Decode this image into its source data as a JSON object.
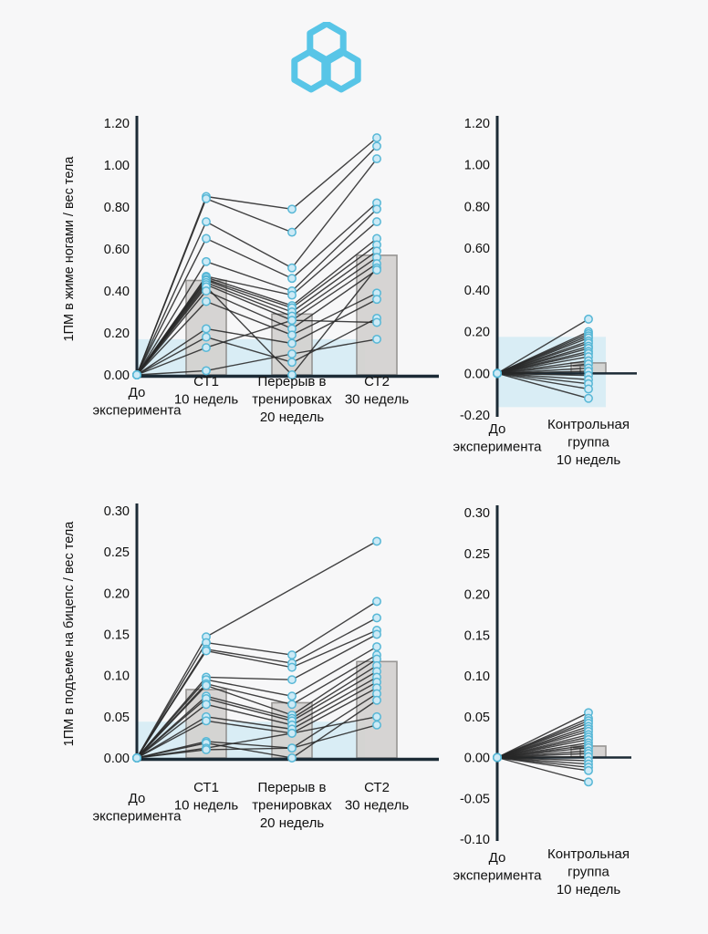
{
  "page": {
    "background": "#f7f7f8"
  },
  "logo": {
    "icon": "three-interlocked-hexagons",
    "color": "#58c5e7"
  },
  "style": {
    "line_color": "#282828",
    "marker_fill": "#cdeaf6",
    "marker_stroke": "#57b7d6",
    "bar_fill": "#d4d2d0",
    "bar_stroke": "#8f8d8b",
    "band_color": "#d9edf5",
    "axis_color": "#1c2b36",
    "error_color": "#6a6a6a",
    "text_color": "#101010"
  },
  "chart_data": [
    {
      "id": "legpress-training",
      "type": "line",
      "ylabel": "1ПМ в жиме ногами / вес тела",
      "ylim": [
        0,
        1.2
      ],
      "ytick_values": [
        1.2,
        1.0,
        0.8,
        0.6,
        0.4,
        0.2,
        0.0
      ],
      "ytick_labels": [
        "1.20",
        "1.00",
        "0.80",
        "0.60",
        "0.40",
        "0.20",
        "0.00"
      ],
      "categories": [
        [
          "До",
          "эксперимента"
        ],
        [
          "СТ1",
          "10 недель"
        ],
        [
          "Перерыв в",
          "тренировках",
          "20 недель"
        ],
        [
          "СТ2",
          "30 недель"
        ]
      ],
      "band": [
        0,
        0.17
      ],
      "bars": [
        null,
        0.45,
        0.29,
        0.57
      ],
      "bar_error": null,
      "zero_line": false,
      "series": [
        [
          0,
          0.85,
          0.79,
          1.13
        ],
        [
          0,
          0.84,
          0.68,
          1.09
        ],
        [
          0,
          0.73,
          0.51,
          1.03
        ],
        [
          0,
          0.65,
          0.46,
          0.82
        ],
        [
          0,
          0.54,
          0.4,
          0.79
        ],
        [
          0,
          0.47,
          0.38,
          0.73
        ],
        [
          0,
          0.465,
          0.33,
          0.65
        ],
        [
          0,
          0.455,
          0.32,
          0.62
        ],
        [
          0,
          0.45,
          0.3,
          0.59
        ],
        [
          0,
          0.44,
          0.28,
          0.56
        ],
        [
          0,
          0.43,
          0.26,
          0.53
        ],
        [
          0,
          0.42,
          0.0,
          0.51
        ],
        [
          0,
          0.4,
          0.22,
          0.5
        ],
        [
          0,
          0.35,
          0.19,
          0.39
        ],
        [
          0,
          0.22,
          0.15,
          0.36
        ],
        [
          0,
          0.18,
          0.06,
          0.27
        ],
        [
          0,
          0.13,
          0.26,
          0.25
        ],
        [
          0,
          0.02,
          0.1,
          0.17
        ]
      ]
    },
    {
      "id": "legpress-control",
      "type": "line",
      "ylabel": "",
      "ylim": [
        -0.2,
        1.2
      ],
      "ytick_values": [
        1.2,
        1.0,
        0.8,
        0.6,
        0.4,
        0.2,
        0.0,
        -0.2
      ],
      "ytick_labels": [
        "1.20",
        "1.00",
        "0.80",
        "0.60",
        "0.40",
        "0.20",
        "0.00",
        "-0.20"
      ],
      "categories": [
        [
          "До",
          "эксперимента"
        ],
        [
          "Контрольная",
          "группа",
          "10 недель"
        ]
      ],
      "band": [
        -0.162,
        0.175
      ],
      "bars": [
        null,
        0.05
      ],
      "bar_error": 0.036,
      "zero_line": true,
      "series": [
        [
          0,
          0.26
        ],
        [
          0,
          0.2
        ],
        [
          0,
          0.19
        ],
        [
          0,
          0.18
        ],
        [
          0,
          0.17
        ],
        [
          0,
          0.155
        ],
        [
          0,
          0.145
        ],
        [
          0,
          0.13
        ],
        [
          0,
          0.12
        ],
        [
          0,
          0.105
        ],
        [
          0,
          0.095
        ],
        [
          0,
          0.08
        ],
        [
          0,
          0.06
        ],
        [
          0,
          0.045
        ],
        [
          0,
          0.025
        ],
        [
          0,
          0.01
        ],
        [
          0,
          -0.01
        ],
        [
          0,
          -0.03
        ],
        [
          0,
          -0.05
        ],
        [
          0,
          -0.075
        ],
        [
          0,
          -0.12
        ]
      ]
    },
    {
      "id": "biceps-training",
      "type": "line",
      "ylabel": "1ПМ в подъеме на бицепс / вес тела",
      "ylim": [
        0,
        0.3
      ],
      "ytick_values": [
        0.3,
        0.25,
        0.2,
        0.15,
        0.1,
        0.05,
        0.0
      ],
      "ytick_labels": [
        "0.30",
        "0.25",
        "0.20",
        "0.15",
        "0.10",
        "0.05",
        "0.00"
      ],
      "categories": [
        [
          "До",
          "эксперимента"
        ],
        [
          "СТ1",
          "10 недель"
        ],
        [
          "Перерыв в",
          "тренировках",
          "20 недель"
        ],
        [
          "СТ2",
          "30 недель"
        ]
      ],
      "band": [
        0,
        0.044
      ],
      "bars": [
        null,
        0.083,
        0.067,
        0.117
      ],
      "bar_error": null,
      "zero_line": false,
      "series": [
        [
          0,
          0.147,
          null,
          0.263
        ],
        [
          0,
          0.14,
          0.125,
          0.19
        ],
        [
          0,
          0.132,
          0.115,
          0.17
        ],
        [
          0,
          0.13,
          0.11,
          0.155
        ],
        [
          0,
          0.098,
          0.095,
          0.15
        ],
        [
          0,
          0.095,
          0.075,
          0.135
        ],
        [
          0,
          0.09,
          0.065,
          0.125
        ],
        [
          0,
          0.088,
          0.052,
          0.12
        ],
        [
          0,
          0.075,
          0.048,
          0.112
        ],
        [
          0,
          0.072,
          0.045,
          0.105
        ],
        [
          0,
          0.065,
          0.04,
          0.098
        ],
        [
          0,
          0.05,
          0.035,
          0.092
        ],
        [
          0,
          0.045,
          0.03,
          0.085
        ],
        [
          0,
          0.02,
          0.012,
          0.078
        ],
        [
          0,
          0.018,
          0.0,
          0.07
        ],
        [
          0,
          0.012,
          0.03,
          0.05
        ],
        [
          0,
          0.01,
          0.012,
          0.04
        ]
      ]
    },
    {
      "id": "biceps-control",
      "type": "line",
      "ylabel": "",
      "ylim": [
        -0.1,
        0.3
      ],
      "ytick_values": [
        0.3,
        0.25,
        0.2,
        0.15,
        0.1,
        0.05,
        0.0,
        -0.05,
        -0.1
      ],
      "ytick_labels": [
        "0.30",
        "0.25",
        "0.20",
        "0.15",
        "0.10",
        "0.05",
        "0.00",
        "-0.05",
        "-0.10"
      ],
      "categories": [
        [
          "До",
          "эксперимента"
        ],
        [
          "Контрольная",
          "группа",
          "10 недель"
        ]
      ],
      "band": null,
      "bars": [
        null,
        0.014
      ],
      "bar_error": 0.012,
      "zero_line": true,
      "series": [
        [
          0,
          0.055
        ],
        [
          0,
          0.048
        ],
        [
          0,
          0.045
        ],
        [
          0,
          0.042
        ],
        [
          0,
          0.038
        ],
        [
          0,
          0.035
        ],
        [
          0,
          0.032
        ],
        [
          0,
          0.028
        ],
        [
          0,
          0.025
        ],
        [
          0,
          0.022
        ],
        [
          0,
          0.018
        ],
        [
          0,
          0.015
        ],
        [
          0,
          0.012
        ],
        [
          0,
          0.008
        ],
        [
          0,
          0.005
        ],
        [
          0,
          0.001
        ],
        [
          0,
          -0.004
        ],
        [
          0,
          -0.008
        ],
        [
          0,
          -0.012
        ],
        [
          0,
          -0.016
        ],
        [
          0,
          -0.03
        ]
      ]
    }
  ]
}
